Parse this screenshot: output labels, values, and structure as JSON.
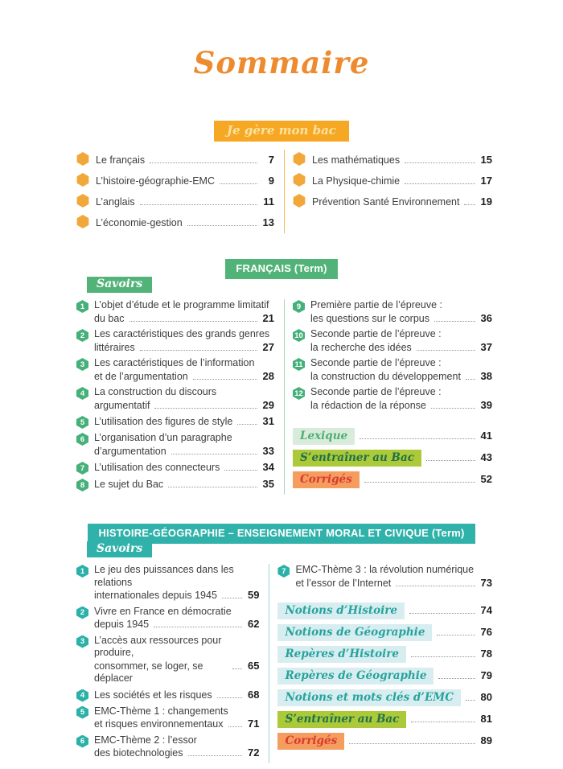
{
  "page_title": "Sommaire",
  "colors": {
    "title_orange": "#ee8b2e",
    "amber_badge_bg": "#f6a825",
    "hex_icon": "#f2a73b",
    "francais_green": "#52b378",
    "hg_teal": "#30b2ab",
    "mint_bg": "#d9ecdc",
    "mint_text": "#4fae73",
    "lime_bg": "#abc938",
    "lime_text": "#20714c",
    "orange_tag_bg": "#f59c5f",
    "orange_tag_text": "#d93a30",
    "cyan_bg": "#d8edf0",
    "cyan_text": "#27a39e",
    "body_text": "#3d3d3d"
  },
  "bac": {
    "badge": "Je gère mon bac",
    "left": [
      {
        "label": "Le français",
        "page": "7"
      },
      {
        "label": "L’histoire-géographie-EMC",
        "page": "9"
      },
      {
        "label": "L’anglais",
        "page": "11"
      },
      {
        "label": "L’économie-gestion",
        "page": "13"
      }
    ],
    "right": [
      {
        "label": "Les mathématiques",
        "page": "15"
      },
      {
        "label": "La Physique-chimie",
        "page": "17"
      },
      {
        "label": "Prévention Santé Environnement",
        "page": "19"
      }
    ]
  },
  "francais": {
    "header": "FRANÇAIS (Term)",
    "savoirs_label": "Savoirs",
    "left": [
      {
        "num": "1",
        "line1": "L’objet d’étude et le programme limitatif",
        "line2": "du bac",
        "page": "21"
      },
      {
        "num": "2",
        "line1": "Les caractéristiques des grands genres",
        "line2": "littéraires",
        "page": "27"
      },
      {
        "num": "3",
        "line1": "Les caractéristiques de l’information",
        "line2": "et de l’argumentation",
        "page": "28"
      },
      {
        "num": "4",
        "line1": "La construction du discours",
        "line2": "argumentatif",
        "page": "29"
      },
      {
        "num": "5",
        "line1": "L’utilisation des figures de style",
        "page": "31"
      },
      {
        "num": "6",
        "line1": "L’organisation d’un paragraphe",
        "line2": "d’argumentation",
        "page": "33"
      },
      {
        "num": "7",
        "line1": "L’utilisation des connecteurs",
        "page": "34"
      },
      {
        "num": "8",
        "line1": "Le sujet du Bac",
        "page": "35"
      }
    ],
    "right": [
      {
        "num": "9",
        "line1": "Première partie de l’épreuve :",
        "line2": "les questions sur le corpus",
        "page": "36"
      },
      {
        "num": "10",
        "line1": "Seconde partie de l’épreuve :",
        "line2": "la recherche des idées",
        "page": "37"
      },
      {
        "num": "11",
        "line1": "Seconde partie de l’épreuve :",
        "line2": "la construction du développement",
        "page": "38"
      },
      {
        "num": "12",
        "line1": "Seconde partie de l’épreuve :",
        "line2": "la rédaction de la réponse",
        "page": "39"
      }
    ],
    "extras": [
      {
        "label": "Lexique",
        "page": "41"
      },
      {
        "label": "S’entraîner au Bac",
        "page": "43"
      },
      {
        "label": "Corrigés",
        "page": "52"
      }
    ]
  },
  "hg": {
    "header": "HISTOIRE-GÉOGRAPHIE – ENSEIGNEMENT MORAL ET CIVIQUE (Term)",
    "savoirs_label": "Savoirs",
    "left": [
      {
        "num": "1",
        "line1": "Le jeu des puissances dans les relations",
        "line2": "internationales depuis 1945",
        "page": "59"
      },
      {
        "num": "2",
        "line1": "Vivre en France en démocratie",
        "line2": "depuis 1945",
        "page": "62"
      },
      {
        "num": "3",
        "line1": "L’accès aux ressources pour produire,",
        "line2": "consommer, se loger, se déplacer",
        "page": "65"
      },
      {
        "num": "4",
        "line1": "Les sociétés et les risques",
        "page": "68"
      },
      {
        "num": "5",
        "line1": "EMC-Thème 1 : changements",
        "line2": "et risques environnementaux",
        "page": "71"
      },
      {
        "num": "6",
        "line1": "EMC-Thème 2 : l’essor",
        "line2": "des biotechnologies",
        "page": "72"
      }
    ],
    "right": [
      {
        "num": "7",
        "line1": "EMC-Thème 3 : la révolution numérique",
        "line2": "et l’essor de l’Internet",
        "page": "73"
      }
    ],
    "extras": [
      {
        "label": "Notions d’Histoire",
        "page": "74"
      },
      {
        "label": "Notions de Géographie",
        "page": "76"
      },
      {
        "label": "Repères d’Histoire",
        "page": "78"
      },
      {
        "label": "Repères de Géographie",
        "page": "79"
      },
      {
        "label": "Notions et mots clés d’EMC",
        "page": "80"
      },
      {
        "label": "S’entraîner au Bac",
        "page": "81"
      },
      {
        "label": "Corrigés",
        "page": "89"
      }
    ]
  }
}
